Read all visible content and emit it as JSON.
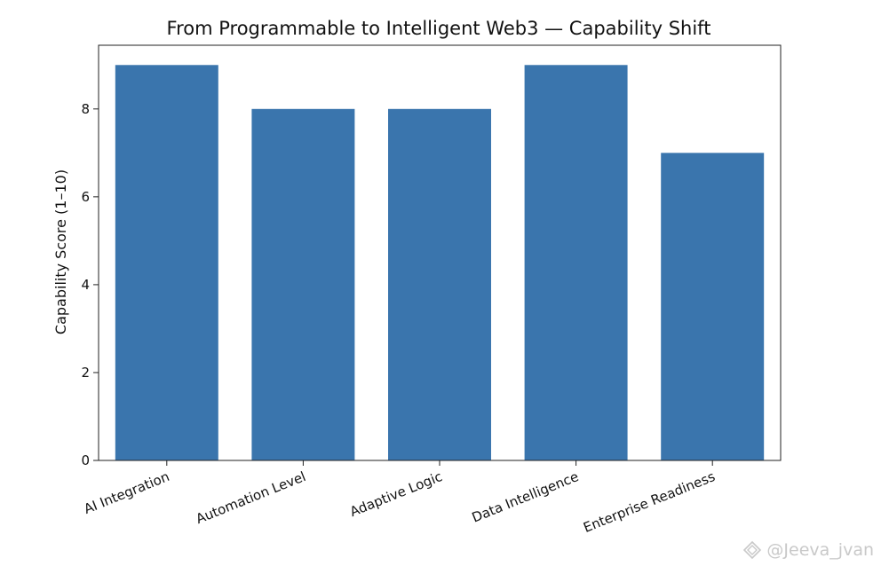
{
  "chart_data": {
    "type": "bar",
    "title": "From Programmable to Intelligent Web3 — Capability Shift",
    "xlabel": "",
    "ylabel": "Capability Score (1–10)",
    "categories": [
      "AI Integration",
      "Automation Level",
      "Adaptive Logic",
      "Data Intelligence",
      "Enterprise Readiness"
    ],
    "values": [
      9,
      8,
      8,
      9,
      7
    ],
    "ylim": [
      0,
      9.45
    ],
    "yticks": [
      0,
      2,
      4,
      6,
      8
    ],
    "bar_color": "#3a75ad",
    "grid": false,
    "xtick_rotation_deg": 22
  },
  "watermark": {
    "text": "@Jeeva_jvan",
    "icon": "logo-icon"
  }
}
